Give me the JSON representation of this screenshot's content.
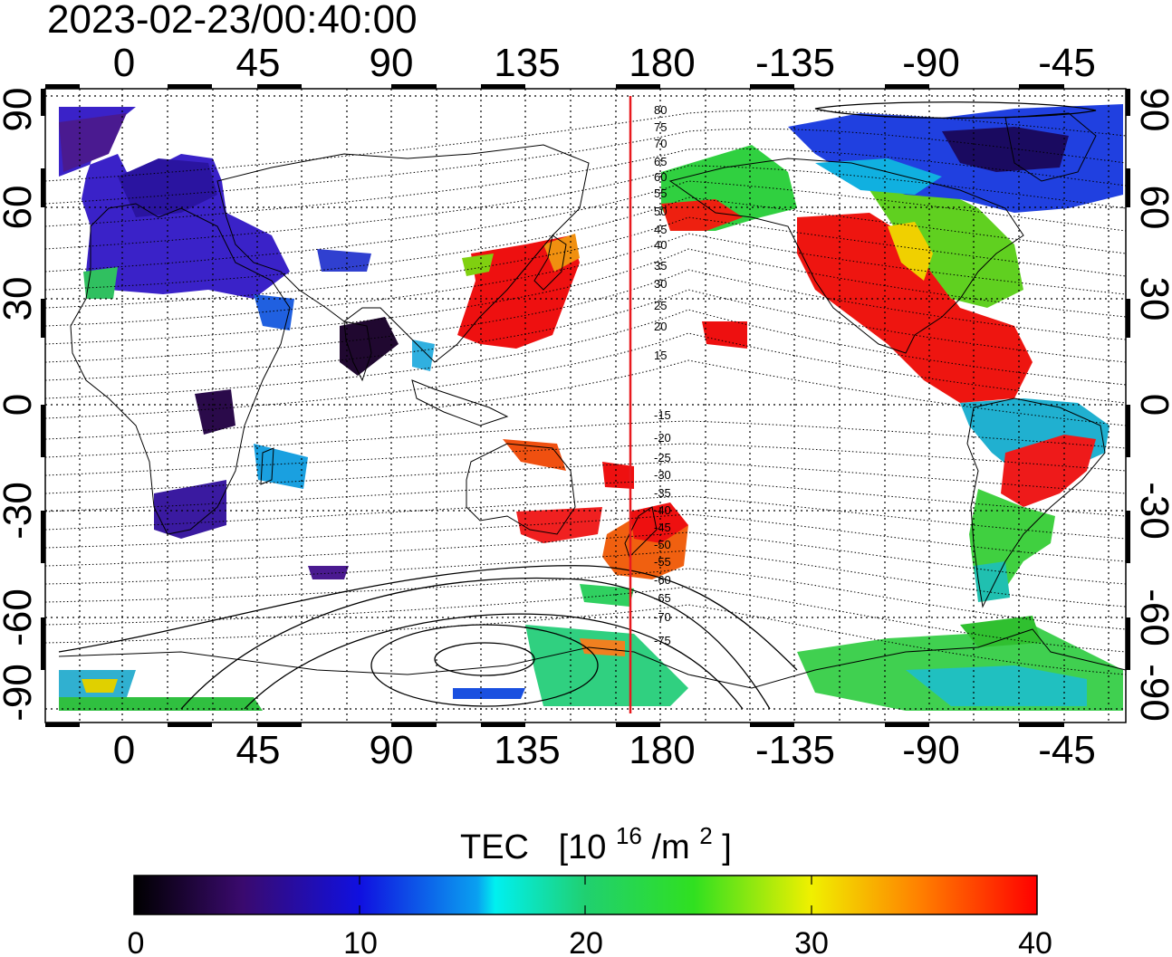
{
  "timestamp": "2023-02-23/00:40:00",
  "map": {
    "top_ticks": [
      "0",
      "45",
      "90",
      "135",
      "180",
      "-135",
      "-90",
      "-45"
    ],
    "bottom_ticks": [
      "0",
      "45",
      "90",
      "135",
      "180",
      "-135",
      "-90",
      "-45"
    ],
    "left_ticks": [
      "90",
      "60",
      "30",
      "0",
      "-30",
      "-60",
      "-90"
    ],
    "right_ticks": [
      "90",
      "60",
      "30",
      "0",
      "-30",
      "-60",
      "-90"
    ],
    "meridian_label": "180",
    "contour_labels": [
      "80",
      "75",
      "70",
      "65",
      "60",
      "55",
      "50",
      "45",
      "40",
      "35",
      "30",
      "25",
      "20",
      "15",
      "-15",
      "-20",
      "-25",
      "-30",
      "-35",
      "-40",
      "-45",
      "-50",
      "-55",
      "-60",
      "-65",
      "-70",
      "-75"
    ],
    "marker_line_longitude": 170
  },
  "colorbar": {
    "title": "TEC",
    "unit_prefix": "[10",
    "unit_sup1": "16",
    "unit_mid": "/m",
    "unit_sup2": "2",
    "unit_suffix": "]",
    "tick_labels": [
      "0",
      "10",
      "20",
      "30",
      "40"
    ],
    "min": 0,
    "max": 40
  },
  "colors": {
    "marker_line": "#e8191e",
    "frame": "#000000"
  }
}
